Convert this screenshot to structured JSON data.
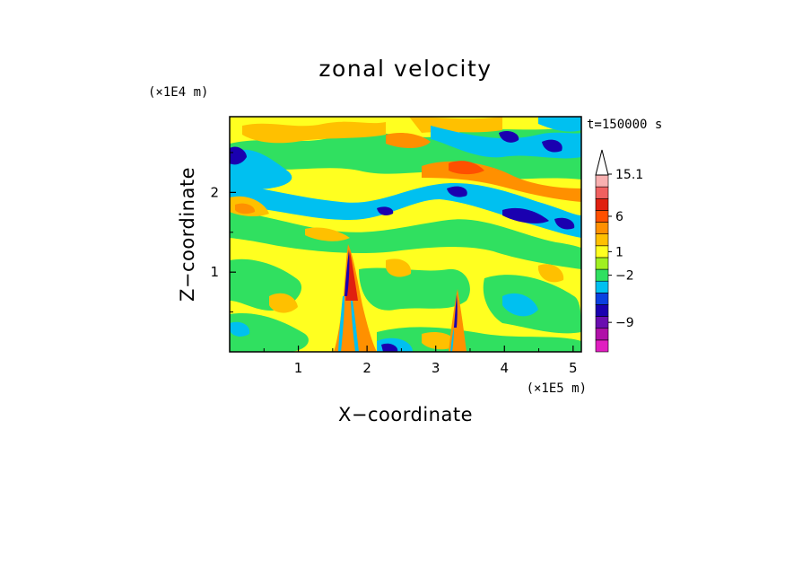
{
  "chart_data": {
    "type": "heatmap",
    "title": "zonal velocity",
    "xlabel": "X−coordinate",
    "ylabel": "Z−coordinate",
    "x_scale_label": "(×1E5 m)",
    "y_scale_label": "(×1E4 m)",
    "time_label": "t=150000 s",
    "xlim": [
      0,
      5.12
    ],
    "ylim": [
      0,
      2.95
    ],
    "x_ticks": [
      1,
      2,
      3,
      4,
      5
    ],
    "x_tick_labels": [
      "1",
      "2",
      "3",
      "4",
      "5"
    ],
    "y_ticks": [
      1,
      2
    ],
    "y_tick_labels": [
      "1",
      "2"
    ],
    "colorbar": {
      "levels": [
        -15.1,
        -12,
        -9,
        -6,
        -4,
        -2,
        -1,
        0,
        1,
        2,
        4,
        6,
        9,
        12,
        15.1
      ],
      "labeled_values": [
        "15.1",
        "6",
        "1",
        "−2",
        "−9"
      ],
      "colors": [
        "#e01ec0",
        "#b011a8",
        "#6a0db0",
        "#1a00b0",
        "#0a40e0",
        "#00c0f0",
        "#30e060",
        "#a0f020",
        "#ffff20",
        "#ffc000",
        "#ff9000",
        "#ff5000",
        "#e02010",
        "#f06060",
        "#f8b0b0"
      ],
      "extend": "max"
    },
    "features": [
      {
        "name": "jet",
        "x_center": 1.78,
        "z_top": 1.3,
        "sign": "mixed"
      },
      {
        "name": "jet",
        "x_center": 3.32,
        "z_top": 0.8,
        "sign": "mixed"
      }
    ]
  }
}
